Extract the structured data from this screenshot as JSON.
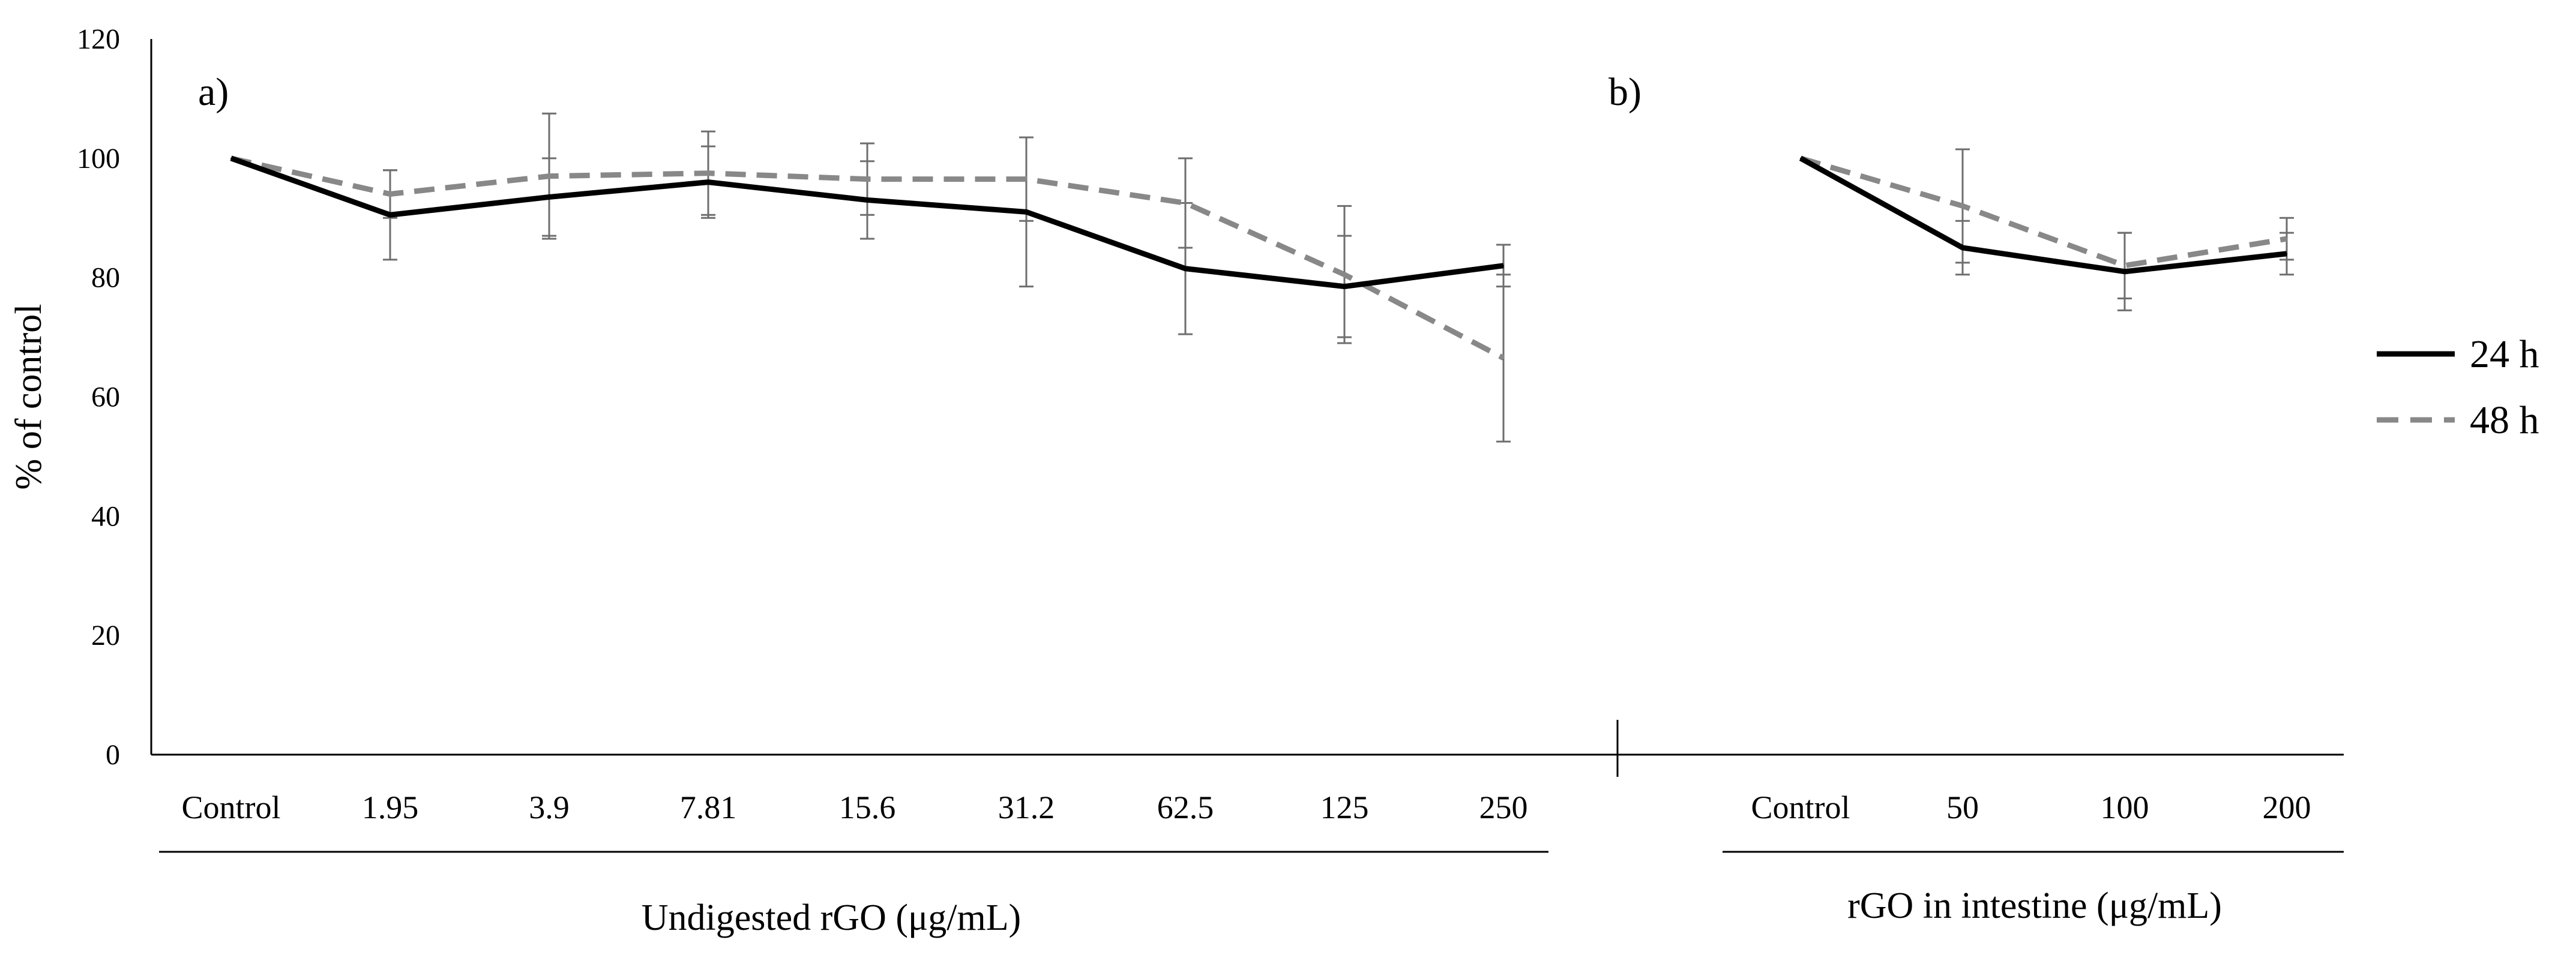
{
  "chart_data": {
    "type": "line",
    "ylabel": "% of control",
    "ylim": [
      0,
      120
    ],
    "yticks": [
      "0",
      "20",
      "40",
      "60",
      "80",
      "100",
      "120"
    ],
    "grid": false,
    "legend": {
      "position": "right",
      "entries": [
        {
          "name": "24 h",
          "style": "solid",
          "color": "#000000"
        },
        {
          "name": "48 h",
          "style": "dashed",
          "color": "#808080"
        }
      ]
    },
    "panels": [
      {
        "label": "a)",
        "xlabel": "Undigested  rGO (μg/mL)",
        "categories": [
          "Control",
          "1.95",
          "3.9",
          "7.81",
          "15.6",
          "31.2",
          "62.5",
          "125",
          "250"
        ],
        "series": [
          {
            "name": "24 h",
            "values": [
              100,
              90.5,
              93.5,
              96,
              93,
              91,
              81.5,
              78.5,
              82
            ],
            "errors": [
              0,
              7.5,
              6.5,
              6,
              6.5,
              12.5,
              11,
              8.5,
              3.5
            ]
          },
          {
            "name": "48 h",
            "values": [
              100,
              94,
              97,
              97.5,
              96.5,
              96.5,
              92.5,
              80.5,
              66.5
            ],
            "errors": [
              0,
              4,
              10.5,
              7,
              6,
              7,
              7.5,
              11.5,
              14
            ]
          }
        ]
      },
      {
        "label": "b)",
        "xlabel": "rGO in intestine (μg/mL)",
        "categories": [
          "Control",
          "50",
          "100",
          "200"
        ],
        "series": [
          {
            "name": "24 h",
            "values": [
              100,
              85,
              81,
              84
            ],
            "errors": [
              0,
              4.5,
              6.5,
              3.5
            ]
          },
          {
            "name": "48 h",
            "values": [
              100,
              92,
              82,
              86.5
            ],
            "errors": [
              0,
              9.5,
              5.5,
              3.5
            ]
          }
        ]
      }
    ]
  }
}
